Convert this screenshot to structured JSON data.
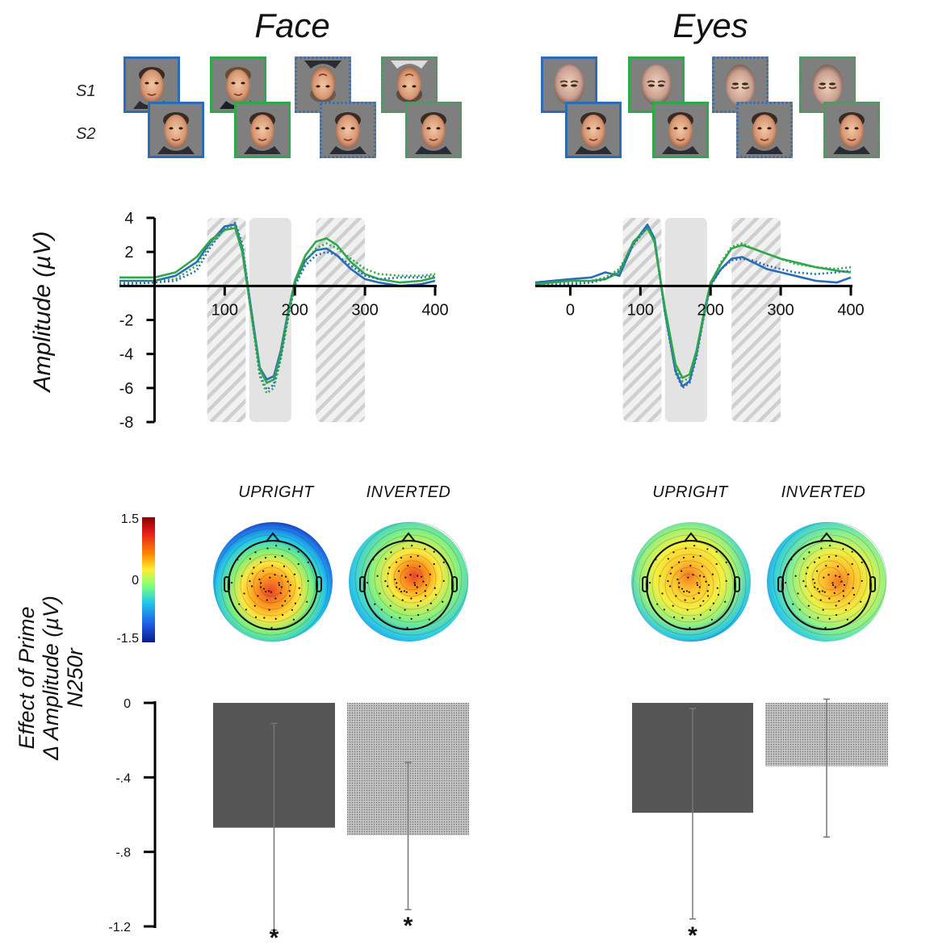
{
  "stimuli": {
    "row_labels": [
      "S1",
      "S2"
    ],
    "face_title": "Face",
    "eyes_title": "Eyes",
    "pair_colors": [
      "#2a6db5",
      "#2ea84a",
      "#2a6db5",
      "#2ea84a"
    ],
    "pair_border_styles": [
      "solid",
      "solid",
      "dotted",
      "dotted"
    ]
  },
  "chart_data": [
    {
      "type": "line",
      "panel": "Face",
      "ylabel": "Amplitude (µV)",
      "xlim": [
        -50,
        400
      ],
      "ylim": [
        -8,
        4
      ],
      "xticks": [
        100,
        200,
        300,
        400
      ],
      "yticks": [
        4,
        2,
        -2,
        -4,
        -6,
        -8
      ],
      "windows": [
        {
          "range": [
            75,
            130
          ],
          "style": "hatched"
        },
        {
          "range": [
            135,
            195
          ],
          "style": "solid"
        },
        {
          "range": [
            230,
            300
          ],
          "style": "hatched"
        }
      ],
      "series": [
        {
          "color": "#2a6db5",
          "dash": "solid",
          "x": [
            -50,
            0,
            30,
            60,
            80,
            100,
            115,
            125,
            140,
            150,
            160,
            170,
            180,
            190,
            200,
            215,
            230,
            245,
            260,
            280,
            300,
            320,
            350,
            380,
            400
          ],
          "values": [
            0.3,
            0.3,
            0.6,
            1.4,
            2.6,
            3.5,
            3.6,
            2.2,
            -2.0,
            -4.8,
            -5.5,
            -5.3,
            -3.8,
            -1.6,
            0.2,
            1.5,
            2.1,
            2.2,
            1.8,
            1.0,
            0.4,
            0.2,
            0.0,
            0.1,
            0.3
          ]
        },
        {
          "color": "#2ea84a",
          "dash": "solid",
          "x": [
            -50,
            0,
            30,
            60,
            80,
            100,
            115,
            125,
            140,
            150,
            160,
            170,
            180,
            190,
            200,
            215,
            230,
            245,
            260,
            280,
            300,
            320,
            350,
            380,
            400
          ],
          "values": [
            0.5,
            0.5,
            0.8,
            1.7,
            2.7,
            3.3,
            3.4,
            2.0,
            -2.2,
            -4.9,
            -5.7,
            -5.5,
            -4.0,
            -1.7,
            0.3,
            1.8,
            2.6,
            2.8,
            2.4,
            1.4,
            0.7,
            0.4,
            0.2,
            0.3,
            0.5
          ]
        },
        {
          "color": "#2a6db5",
          "dash": "dotted",
          "x": [
            -50,
            0,
            30,
            60,
            80,
            100,
            115,
            125,
            140,
            150,
            160,
            170,
            180,
            190,
            200,
            215,
            230,
            245,
            260,
            280,
            300,
            320,
            350,
            380,
            400
          ],
          "values": [
            0.1,
            0.2,
            0.3,
            0.9,
            2.3,
            3.4,
            3.7,
            2.5,
            -2.1,
            -5.2,
            -6.1,
            -5.8,
            -4.2,
            -1.9,
            0.0,
            1.2,
            1.8,
            2.0,
            1.8,
            1.2,
            0.6,
            0.4,
            0.5,
            0.5,
            0.6
          ]
        },
        {
          "color": "#2ea84a",
          "dash": "dotted",
          "x": [
            -50,
            0,
            30,
            60,
            80,
            100,
            115,
            125,
            140,
            150,
            160,
            170,
            180,
            190,
            200,
            215,
            230,
            245,
            260,
            280,
            300,
            320,
            350,
            380,
            400
          ],
          "values": [
            0.2,
            0.3,
            0.4,
            1.2,
            2.5,
            3.3,
            3.5,
            2.3,
            -2.3,
            -5.3,
            -6.3,
            -6.0,
            -4.3,
            -2.0,
            0.1,
            1.4,
            2.2,
            2.5,
            2.2,
            1.6,
            1.0,
            0.7,
            0.6,
            0.6,
            0.7
          ]
        }
      ]
    },
    {
      "type": "line",
      "panel": "Eyes",
      "xlim": [
        -50,
        400
      ],
      "ylim": [
        -8,
        4
      ],
      "xticks": [
        0,
        100,
        200,
        300,
        400
      ],
      "windows": [
        {
          "range": [
            75,
            130
          ],
          "style": "hatched"
        },
        {
          "range": [
            135,
            195
          ],
          "style": "solid"
        },
        {
          "range": [
            230,
            300
          ],
          "style": "hatched"
        }
      ],
      "series": [
        {
          "color": "#2a6db5",
          "dash": "solid",
          "x": [
            -50,
            0,
            30,
            50,
            70,
            90,
            110,
            120,
            135,
            150,
            160,
            170,
            180,
            190,
            200,
            215,
            230,
            245,
            260,
            280,
            300,
            320,
            350,
            380,
            400
          ],
          "values": [
            0.2,
            0.4,
            0.5,
            0.8,
            0.6,
            2.5,
            3.6,
            2.8,
            -1.5,
            -5.0,
            -5.9,
            -5.6,
            -4.0,
            -1.8,
            0.1,
            1.0,
            1.6,
            1.7,
            1.4,
            1.0,
            0.8,
            0.6,
            0.3,
            0.2,
            0.5
          ]
        },
        {
          "color": "#2ea84a",
          "dash": "solid",
          "x": [
            -50,
            0,
            30,
            50,
            70,
            90,
            110,
            120,
            135,
            150,
            160,
            170,
            180,
            190,
            200,
            215,
            230,
            245,
            260,
            280,
            300,
            320,
            350,
            380,
            400
          ],
          "values": [
            0.1,
            0.3,
            0.3,
            0.4,
            0.8,
            2.6,
            3.4,
            2.6,
            -1.3,
            -4.6,
            -5.4,
            -5.2,
            -3.8,
            -1.7,
            0.2,
            1.3,
            2.2,
            2.4,
            2.2,
            1.9,
            1.6,
            1.4,
            1.1,
            0.9,
            0.8
          ]
        },
        {
          "color": "#2a6db5",
          "dash": "dotted",
          "x": [
            -50,
            0,
            30,
            50,
            70,
            90,
            110,
            120,
            135,
            150,
            160,
            170,
            180,
            190,
            200,
            215,
            230,
            245,
            260,
            280,
            300,
            320,
            350,
            380,
            400
          ],
          "values": [
            0.0,
            0.1,
            0.2,
            0.4,
            0.9,
            2.4,
            3.5,
            2.8,
            -1.6,
            -5.1,
            -6.0,
            -5.7,
            -4.2,
            -1.9,
            0.0,
            1.0,
            1.5,
            1.6,
            1.5,
            1.2,
            1.0,
            0.8,
            0.7,
            0.8,
            0.9
          ]
        },
        {
          "color": "#2ea84a",
          "dash": "dotted",
          "x": [
            -50,
            0,
            30,
            50,
            70,
            90,
            110,
            120,
            135,
            150,
            160,
            170,
            180,
            190,
            200,
            215,
            230,
            245,
            260,
            280,
            300,
            320,
            350,
            380,
            400
          ],
          "values": [
            0.1,
            0.2,
            0.3,
            0.5,
            1.0,
            2.5,
            3.4,
            2.7,
            -1.4,
            -4.8,
            -5.6,
            -5.4,
            -4.0,
            -1.8,
            0.1,
            1.4,
            2.3,
            2.5,
            2.2,
            1.9,
            1.6,
            1.3,
            1.1,
            1.0,
            1.1
          ]
        }
      ]
    },
    {
      "type": "heatmap",
      "ylabel_lines": [
        "Effect of Prime",
        "Δ Amplitude (µV)",
        "N250r"
      ],
      "colorbar_ticks": [
        "1.5",
        "0",
        "-1.5"
      ],
      "headers": [
        "UPRIGHT",
        "INVERTED",
        "UPRIGHT",
        "INVERTED"
      ]
    },
    {
      "type": "bar",
      "ylim": [
        -1.2,
        0
      ],
      "yticks": [
        "0",
        "-.4",
        "-.8",
        "-1.2"
      ],
      "categories": [
        "Face Upright",
        "Face Inverted",
        "Eyes Upright",
        "Eyes Inverted"
      ],
      "values": [
        -0.67,
        -0.71,
        -0.59,
        -0.34
      ],
      "error_low": [
        -1.22,
        -1.11,
        -1.16,
        -0.72
      ],
      "error_high": [
        -0.11,
        -0.32,
        -0.03,
        0.02
      ],
      "fills": [
        "solid",
        "dotted",
        "solid",
        "dotted"
      ],
      "significance": [
        "*",
        "*",
        "*",
        ""
      ]
    }
  ]
}
